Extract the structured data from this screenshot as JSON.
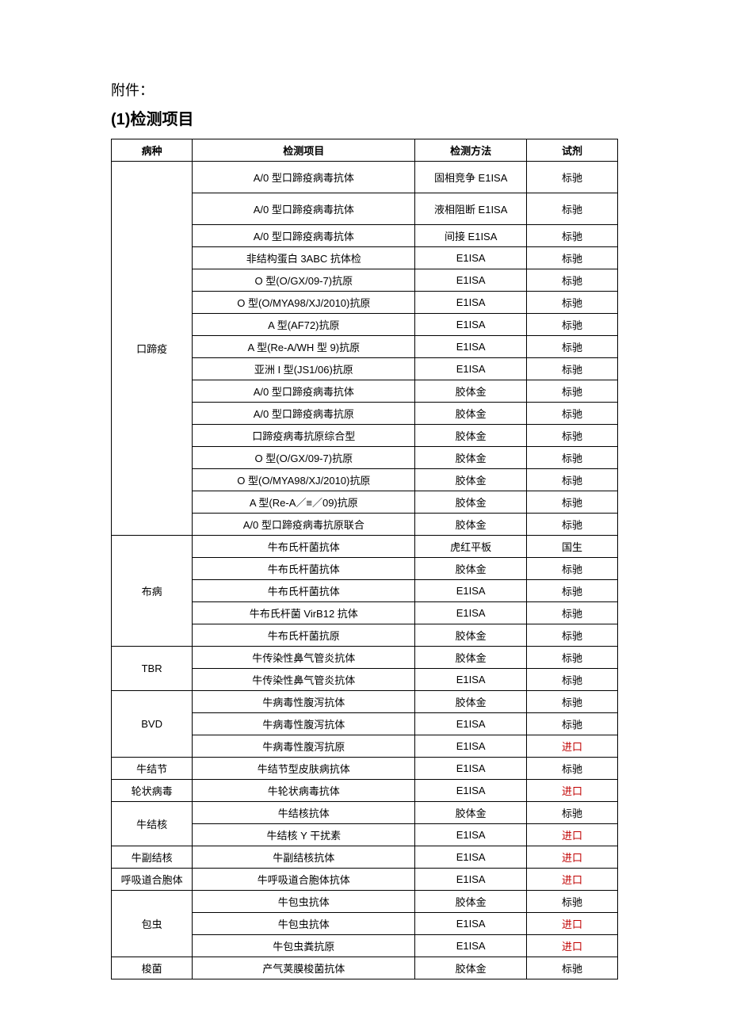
{
  "headerLabel": "附件：",
  "sectionTitle": "(1)检测项目",
  "columns": {
    "disease": "病种",
    "item": "检测项目",
    "method": "检测方法",
    "reagent": "试剂"
  },
  "groups": [
    {
      "disease": "口蹄疫",
      "rows": [
        {
          "item": "A/0 型口蹄疫病毒抗体",
          "method": "固相竞争 E1ISA",
          "reagent": "标驰",
          "tall": true,
          "red": false
        },
        {
          "item": "A/0 型口蹄疫病毒抗体",
          "method": "液相阻断 E1ISA",
          "reagent": "标驰",
          "tall": true,
          "red": false
        },
        {
          "item": "A/0 型口蹄疫病毒抗体",
          "method": "间接 E1ISA",
          "reagent": "标驰",
          "tall": false,
          "red": false
        },
        {
          "item": "非结构蛋白 3ABC 抗体检",
          "method": "E1ISA",
          "reagent": "标驰",
          "tall": false,
          "red": false
        },
        {
          "item": "O 型(O/GX/09-7)抗原",
          "method": "E1ISA",
          "reagent": "标驰",
          "tall": false,
          "red": false
        },
        {
          "item": "O 型(O/MYA98/XJ/2010)抗原",
          "method": "E1ISA",
          "reagent": "标驰",
          "tall": false,
          "red": false
        },
        {
          "item": "A 型(AF72)抗原",
          "method": "E1ISA",
          "reagent": "标驰",
          "tall": false,
          "red": false
        },
        {
          "item": "A 型(Re-A/WH 型 9)抗原",
          "method": "E1ISA",
          "reagent": "标驰",
          "tall": false,
          "red": false
        },
        {
          "item": "亚洲 I 型(JS1/06)抗原",
          "method": "E1ISA",
          "reagent": "标驰",
          "tall": false,
          "red": false
        },
        {
          "item": "A/0 型口蹄疫病毒抗体",
          "method": "胶体金",
          "reagent": "标驰",
          "tall": false,
          "red": false
        },
        {
          "item": "A/0 型口蹄疫病毒抗原",
          "method": "胶体金",
          "reagent": "标驰",
          "tall": false,
          "red": false
        },
        {
          "item": "口蹄疫病毒抗原综合型",
          "method": "胶体金",
          "reagent": "标驰",
          "tall": false,
          "red": false
        },
        {
          "item": "O 型(O/GX/09-7)抗原",
          "method": "胶体金",
          "reagent": "标驰",
          "tall": false,
          "red": false
        },
        {
          "item": "O 型(O/MYA98/XJ/2010)抗原",
          "method": "胶体金",
          "reagent": "标驰",
          "tall": false,
          "red": false
        },
        {
          "item": "A 型(Re-A／≡／09)抗原",
          "method": "胶体金",
          "reagent": "标驰",
          "tall": false,
          "red": false
        },
        {
          "item": "A/0 型口蹄疫病毒抗原联合",
          "method": "胶体金",
          "reagent": "标驰",
          "tall": false,
          "red": false
        }
      ]
    },
    {
      "disease": "布病",
      "rows": [
        {
          "item": "牛布氏杆菌抗体",
          "method": "虎红平板",
          "reagent": "国生",
          "tall": false,
          "red": false
        },
        {
          "item": "牛布氏杆菌抗体",
          "method": "胶体金",
          "reagent": "标驰",
          "tall": false,
          "red": false
        },
        {
          "item": "牛布氏杆菌抗体",
          "method": "E1ISA",
          "reagent": "标驰",
          "tall": false,
          "red": false
        },
        {
          "item": "牛布氏杆菌 VirB12 抗体",
          "method": "E1ISA",
          "reagent": "标驰",
          "tall": false,
          "red": false
        },
        {
          "item": "牛布氏杆菌抗原",
          "method": "胶体金",
          "reagent": "标驰",
          "tall": false,
          "red": false
        }
      ]
    },
    {
      "disease": "TBR",
      "rows": [
        {
          "item": "牛传染性鼻气管炎抗体",
          "method": "胶体金",
          "reagent": "标驰",
          "tall": false,
          "red": false
        },
        {
          "item": "牛传染性鼻气管炎抗体",
          "method": "E1ISA",
          "reagent": "标驰",
          "tall": false,
          "red": false
        }
      ]
    },
    {
      "disease": "BVD",
      "rows": [
        {
          "item": "牛病毒性腹泻抗体",
          "method": "胶体金",
          "reagent": "标驰",
          "tall": false,
          "red": false
        },
        {
          "item": "牛病毒性腹泻抗体",
          "method": "E1ISA",
          "reagent": "标驰",
          "tall": false,
          "red": false
        },
        {
          "item": "牛病毒性腹泻抗原",
          "method": "E1ISA",
          "reagent": "进口",
          "tall": false,
          "red": true
        }
      ]
    },
    {
      "disease": "牛结节",
      "rows": [
        {
          "item": "牛结节型皮肤病抗体",
          "method": "E1ISA",
          "reagent": "标驰",
          "tall": false,
          "red": false
        }
      ]
    },
    {
      "disease": "轮状病毒",
      "rows": [
        {
          "item": "牛轮状病毒抗体",
          "method": "E1ISA",
          "reagent": "进口",
          "tall": false,
          "red": true
        }
      ]
    },
    {
      "disease": "牛结核",
      "rows": [
        {
          "item": "牛结核抗体",
          "method": "胶体金",
          "reagent": "标驰",
          "tall": false,
          "red": false
        },
        {
          "item": "牛结核 Y 干扰素",
          "method": "E1ISA",
          "reagent": "进口",
          "tall": false,
          "red": true
        }
      ]
    },
    {
      "disease": "牛副结核",
      "rows": [
        {
          "item": "牛副结核抗体",
          "method": "E1ISA",
          "reagent": "进口",
          "tall": false,
          "red": true
        }
      ]
    },
    {
      "disease": "呼吸道合胞体",
      "rows": [
        {
          "item": "牛呼吸道合胞体抗体",
          "method": "E1ISA",
          "reagent": "进口",
          "tall": false,
          "red": true
        }
      ]
    },
    {
      "disease": "包虫",
      "rows": [
        {
          "item": "牛包虫抗体",
          "method": "胶体金",
          "reagent": "标驰",
          "tall": false,
          "red": false
        },
        {
          "item": "牛包虫抗体",
          "method": "E1ISA",
          "reagent": "进口",
          "tall": false,
          "red": true
        },
        {
          "item": "牛包虫粪抗原",
          "method": "E1ISA",
          "reagent": "进口",
          "tall": false,
          "red": true
        }
      ]
    },
    {
      "disease": "梭菌",
      "rows": [
        {
          "item": "产气荚膜梭菌抗体",
          "method": "胶体金",
          "reagent": "标驰",
          "tall": false,
          "red": false
        }
      ]
    }
  ]
}
